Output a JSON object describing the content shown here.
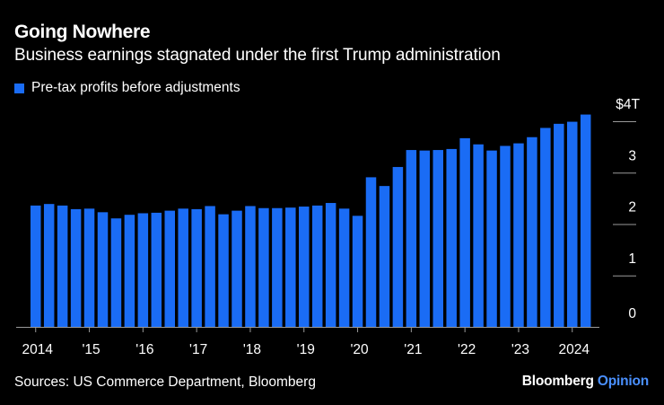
{
  "title": "Going Nowhere",
  "subtitle": "Business earnings stagnated under the first Trump administration",
  "legend": {
    "label": "Pre-tax profits before adjustments",
    "color": "#1a6cf5"
  },
  "source": "Sources: US Commerce Department, Bloomberg",
  "brand": {
    "name": "Bloomberg",
    "suffix": "Opinion",
    "suffix_color": "#4a90ff"
  },
  "chart_data": {
    "type": "bar",
    "title": "Going Nowhere",
    "subtitle": "Business earnings stagnated under the first Trump administration",
    "xlabel": "",
    "ylabel": "",
    "ylim": [
      0,
      4.2
    ],
    "y_ticks": [
      {
        "value": 0,
        "label": "0"
      },
      {
        "value": 1,
        "label": "1"
      },
      {
        "value": 2,
        "label": "2"
      },
      {
        "value": 3,
        "label": "3"
      },
      {
        "value": 4,
        "label": "$4T"
      }
    ],
    "x_ticks": [
      {
        "index": 0,
        "label": "2014"
      },
      {
        "index": 4,
        "label": "'15"
      },
      {
        "index": 8,
        "label": "'16"
      },
      {
        "index": 12,
        "label": "'17"
      },
      {
        "index": 16,
        "label": "'18"
      },
      {
        "index": 20,
        "label": "'19"
      },
      {
        "index": 24,
        "label": "'20"
      },
      {
        "index": 28,
        "label": "'21"
      },
      {
        "index": 32,
        "label": "'22"
      },
      {
        "index": 36,
        "label": "'23"
      },
      {
        "index": 40,
        "label": "2024"
      }
    ],
    "categories": [
      "2014 Q1",
      "2014 Q2",
      "2014 Q3",
      "2014 Q4",
      "2015 Q1",
      "2015 Q2",
      "2015 Q3",
      "2015 Q4",
      "2016 Q1",
      "2016 Q2",
      "2016 Q3",
      "2016 Q4",
      "2017 Q1",
      "2017 Q2",
      "2017 Q3",
      "2017 Q4",
      "2018 Q1",
      "2018 Q2",
      "2018 Q3",
      "2018 Q4",
      "2019 Q1",
      "2019 Q2",
      "2019 Q3",
      "2019 Q4",
      "2020 Q1",
      "2020 Q2",
      "2020 Q3",
      "2020 Q4",
      "2021 Q1",
      "2021 Q2",
      "2021 Q3",
      "2021 Q4",
      "2022 Q1",
      "2022 Q2",
      "2022 Q3",
      "2022 Q4",
      "2023 Q1",
      "2023 Q2",
      "2023 Q3",
      "2023 Q4",
      "2024 Q1",
      "2024 Q2"
    ],
    "series": [
      {
        "name": "Pre-tax profits before adjustments",
        "color": "#1a6cf5",
        "values": [
          2.36,
          2.39,
          2.36,
          2.29,
          2.3,
          2.23,
          2.11,
          2.18,
          2.21,
          2.22,
          2.26,
          2.3,
          2.29,
          2.35,
          2.19,
          2.26,
          2.35,
          2.31,
          2.31,
          2.32,
          2.34,
          2.36,
          2.41,
          2.3,
          2.16,
          2.91,
          2.74,
          3.11,
          3.44,
          3.43,
          3.44,
          3.46,
          3.67,
          3.55,
          3.43,
          3.52,
          3.57,
          3.69,
          3.87,
          3.95,
          3.99,
          4.13
        ]
      }
    ]
  }
}
